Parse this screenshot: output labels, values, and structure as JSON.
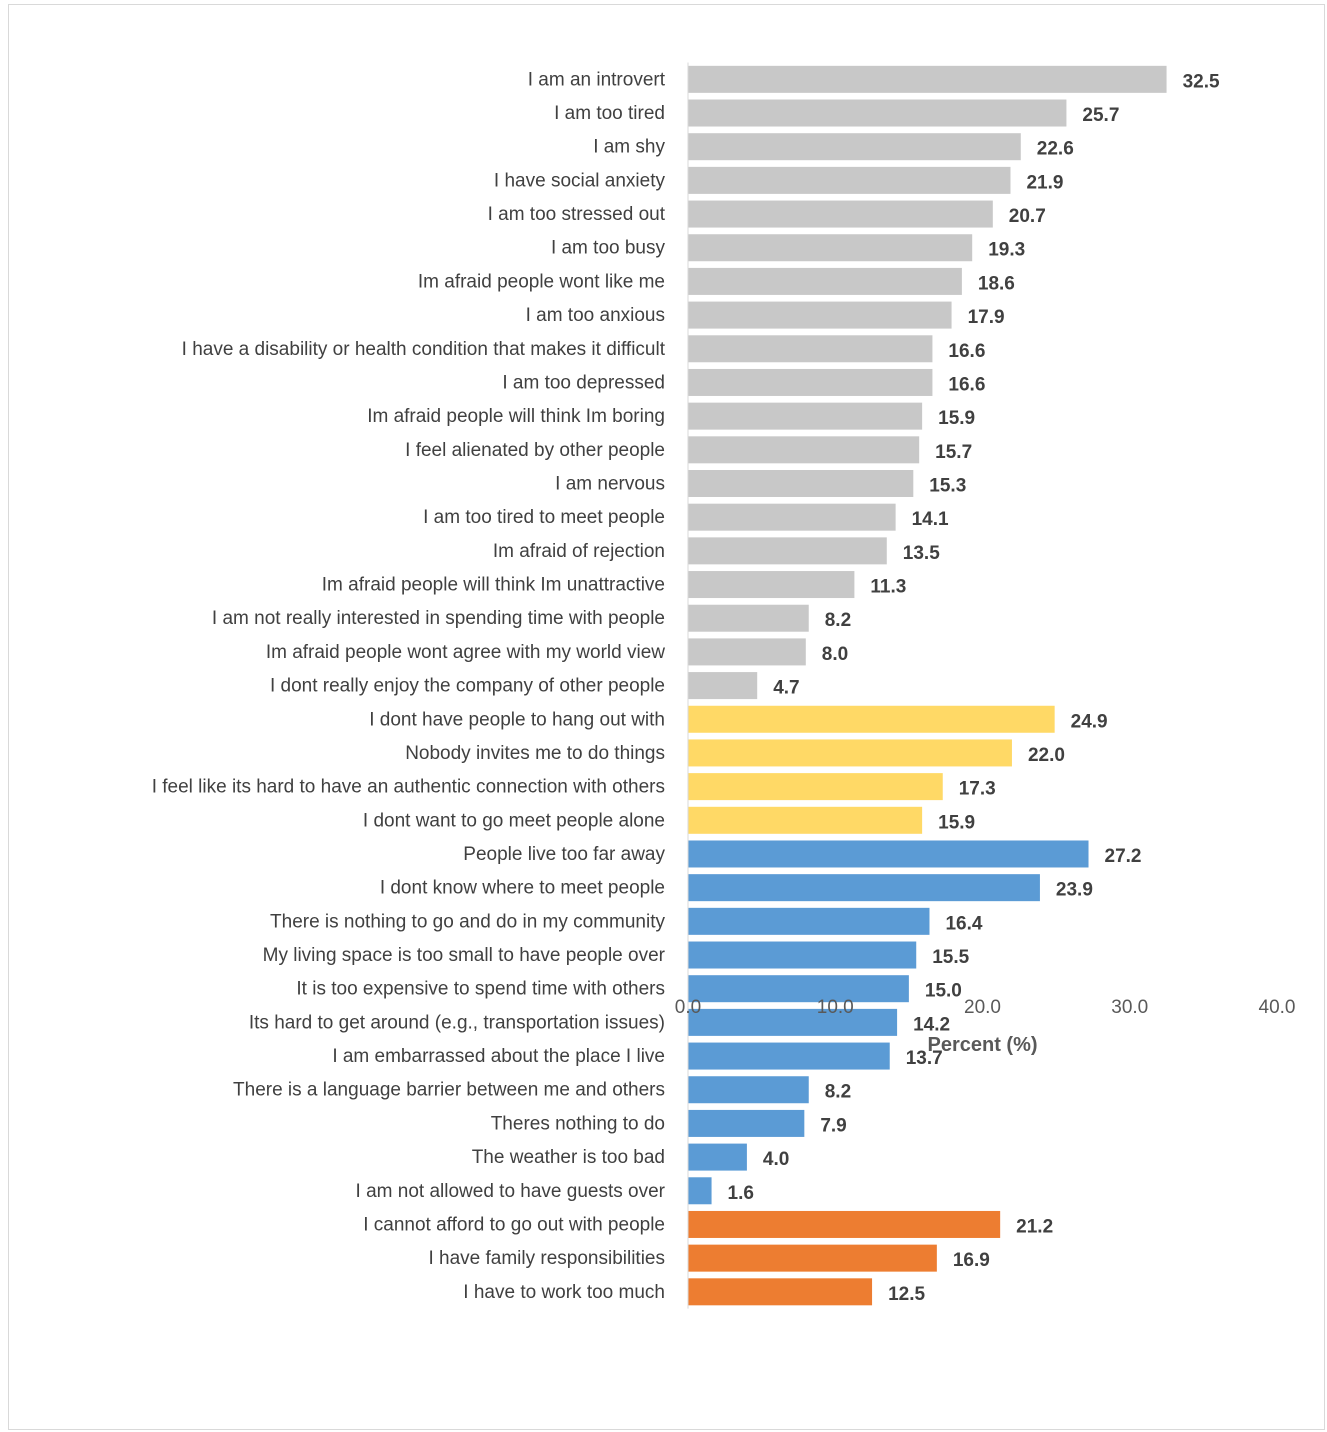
{
  "chart_data": {
    "type": "bar",
    "orientation": "horizontal",
    "title": "",
    "xlabel": "Percent (%)",
    "ylabel": "",
    "xlim": [
      0,
      40
    ],
    "xticks": [
      "0.0",
      "10.0",
      "20.0",
      "30.0",
      "40.0"
    ],
    "grid": false,
    "legend": "none",
    "groups": [
      {
        "color": "#c8c8c8",
        "categories": [
          "I am an introvert",
          "I am too tired",
          "I am shy",
          "I have social anxiety",
          "I am too stressed out",
          "I am too busy",
          "Im afraid people wont like me",
          "I am too anxious",
          "I have a disability or health condition that makes it difficult",
          "I am too depressed",
          "Im afraid people will think Im boring",
          "I feel alienated by other people",
          "I am nervous",
          "I am too tired to meet people",
          "Im afraid of rejection",
          "Im afraid people will think Im unattractive",
          "I am not really interested in spending time with people",
          "Im afraid people wont agree with my world view",
          "I dont really enjoy the company of other people"
        ],
        "values": [
          32.5,
          25.7,
          22.6,
          21.9,
          20.7,
          19.3,
          18.6,
          17.9,
          16.6,
          16.6,
          15.9,
          15.7,
          15.3,
          14.1,
          13.5,
          11.3,
          8.2,
          8.0,
          4.7
        ]
      },
      {
        "color": "#ffd966",
        "categories": [
          "I dont have people to hang out with",
          "Nobody invites me to do things",
          "I feel like its hard to have an authentic connection with others",
          "I dont want to go meet people alone"
        ],
        "values": [
          24.9,
          22.0,
          17.3,
          15.9
        ]
      },
      {
        "color": "#5b9bd5",
        "categories": [
          "People live too far away",
          "I dont know where to meet people",
          "There is nothing to go and do in my community",
          "My living space is too small to have people over",
          "It is too expensive to spend time with others",
          "Its hard to get around (e.g., transportation issues)",
          "I am embarrassed about the place I live",
          "There is a language barrier between me and others",
          "Theres nothing to do",
          "The weather is too bad",
          "I am not allowed to have guests over"
        ],
        "values": [
          27.2,
          23.9,
          16.4,
          15.5,
          15.0,
          14.2,
          13.7,
          8.2,
          7.9,
          4.0,
          1.6
        ]
      },
      {
        "color": "#ed7d31",
        "categories": [
          "I cannot afford to go out with people",
          "I have family responsibilities",
          "I have to work too much"
        ],
        "values": [
          21.2,
          16.9,
          12.5
        ]
      }
    ]
  }
}
